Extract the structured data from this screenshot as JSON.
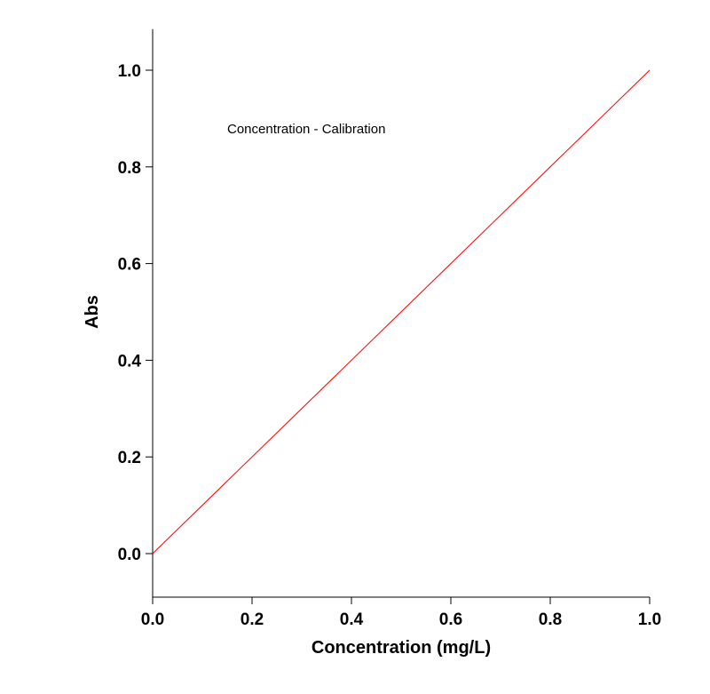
{
  "chart_data": {
    "type": "line",
    "title": "",
    "xlabel": "Concentration (mg/L)",
    "ylabel": "Abs",
    "xlim": [
      0.0,
      1.0
    ],
    "ylim": [
      -0.09,
      1.085
    ],
    "xticks": [
      "0.0",
      "0.2",
      "0.4",
      "0.6",
      "0.8",
      "1.0"
    ],
    "yticks": [
      "0.0",
      "0.2",
      "0.4",
      "0.6",
      "0.8",
      "1.0"
    ],
    "grid": false,
    "legend": "none",
    "annotations": [
      {
        "text": "Concentration - Calibration"
      }
    ],
    "series": [
      {
        "x": [
          0.0,
          1.0
        ],
        "y": [
          0.0,
          1.0
        ],
        "color": "#ff0000"
      }
    ]
  }
}
